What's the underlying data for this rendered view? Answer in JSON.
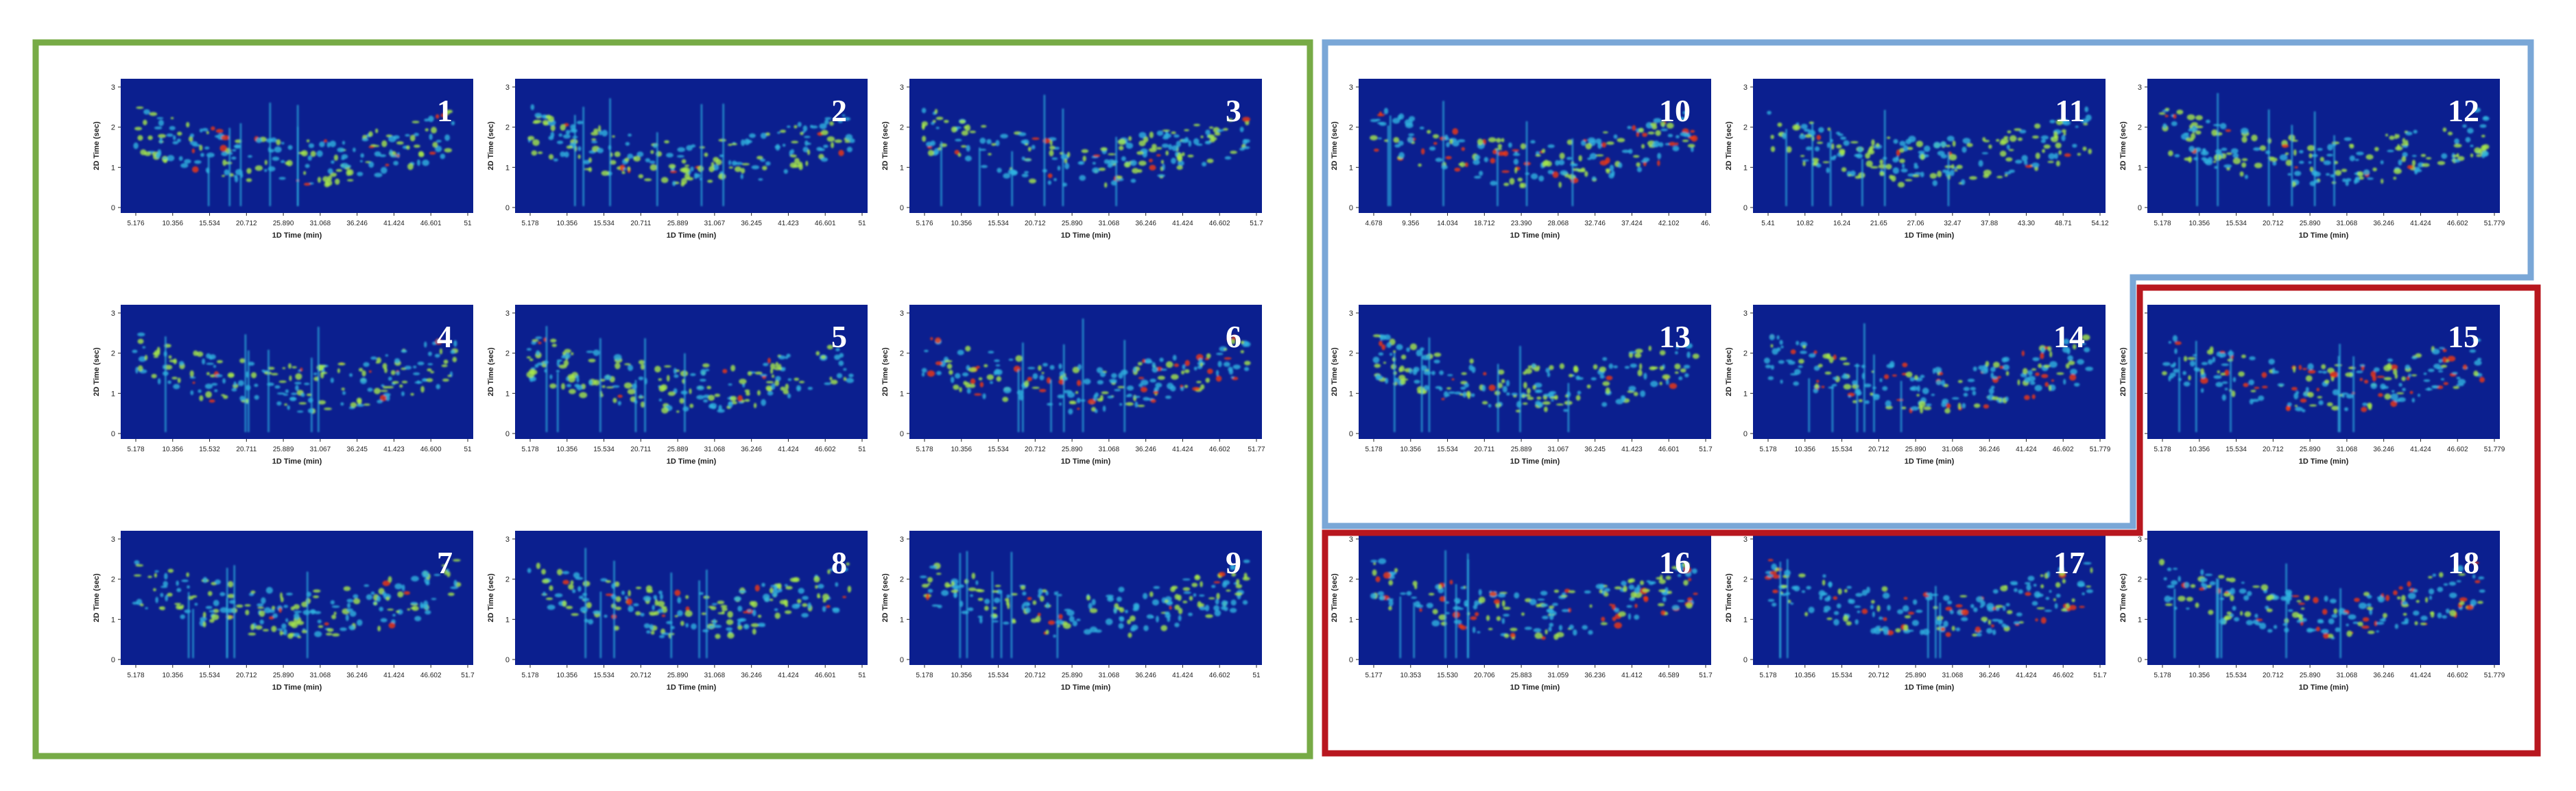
{
  "colors": {
    "group_green": "#77ab46",
    "group_blue": "#7aa7d7",
    "group_red": "#b8171f",
    "plot_background": "#0b1f8f",
    "peak_low": "#2fb3e0",
    "peak_mid": "#a8e84a",
    "peak_high": "#f23a12"
  },
  "groups": [
    {
      "name": "green",
      "panels": [
        "1",
        "2",
        "3",
        "4",
        "5",
        "6",
        "7",
        "8",
        "9"
      ]
    },
    {
      "name": "blue",
      "panels": [
        "10",
        "11",
        "12",
        "13",
        "14"
      ]
    },
    {
      "name": "red",
      "panels": [
        "15",
        "16",
        "17",
        "18"
      ]
    }
  ],
  "panels": [
    {
      "label": "1",
      "y_title": "2D Time (sec)",
      "x_title": "1D Time (min)",
      "y_ticks": [
        "0",
        "1",
        "2",
        "3"
      ],
      "x_ticks": [
        "5.176",
        "10.356",
        "15.534",
        "20.712",
        "25.890",
        "31.068",
        "36.246",
        "41.424",
        "46.601",
        "51"
      ]
    },
    {
      "label": "2",
      "y_title": "2D Time (sec)",
      "x_title": "1D Time (min)",
      "y_ticks": [
        "0",
        "1",
        "2",
        "3"
      ],
      "x_ticks": [
        "5.178",
        "10.356",
        "15.534",
        "20.711",
        "25.889",
        "31.067",
        "36.245",
        "41.423",
        "46.601",
        "51"
      ]
    },
    {
      "label": "3",
      "y_title": "2D Time (sec)",
      "x_title": "1D Time (min)",
      "y_ticks": [
        "0",
        "1",
        "2",
        "3"
      ],
      "x_ticks": [
        "5.176",
        "10.356",
        "15.534",
        "20.712",
        "25.890",
        "31.068",
        "36.246",
        "41.424",
        "46.602",
        "51.7"
      ]
    },
    {
      "label": "4",
      "y_title": "2D Time (sec)",
      "x_title": "1D Time (min)",
      "y_ticks": [
        "0",
        "1",
        "2",
        "3"
      ],
      "x_ticks": [
        "5.178",
        "10.356",
        "15.532",
        "20.711",
        "25.889",
        "31.067",
        "36.245",
        "41.423",
        "46.600",
        "51"
      ]
    },
    {
      "label": "5",
      "y_title": "2D Time (sec)",
      "x_title": "1D Time (min)",
      "y_ticks": [
        "0",
        "1",
        "2",
        "3"
      ],
      "x_ticks": [
        "5.178",
        "10.356",
        "15.534",
        "20.711",
        "25.889",
        "31.068",
        "36.246",
        "41.424",
        "46.602",
        "51"
      ]
    },
    {
      "label": "6",
      "y_title": "2D Time (sec)",
      "x_title": "1D Time (min)",
      "y_ticks": [
        "0",
        "1",
        "2",
        "3"
      ],
      "x_ticks": [
        "5.178",
        "10.356",
        "15.534",
        "20.712",
        "25.890",
        "31.068",
        "36.246",
        "41.424",
        "46.602",
        "51.77"
      ]
    },
    {
      "label": "7",
      "y_title": "2D Time (sec)",
      "x_title": "1D Time (min)",
      "y_ticks": [
        "0",
        "1",
        "2",
        "3"
      ],
      "x_ticks": [
        "5.178",
        "10.356",
        "15.534",
        "20.712",
        "25.890",
        "31.068",
        "36.246",
        "41.424",
        "46.602",
        "51.7"
      ]
    },
    {
      "label": "8",
      "y_title": "2D Time (sec)",
      "x_title": "1D Time (min)",
      "y_ticks": [
        "0",
        "1",
        "2",
        "3"
      ],
      "x_ticks": [
        "5.178",
        "10.356",
        "15.534",
        "20.712",
        "25.890",
        "31.068",
        "36.246",
        "41.424",
        "46.601",
        "51"
      ]
    },
    {
      "label": "9",
      "y_title": "2D Time (sec)",
      "x_title": "1D Time (min)",
      "y_ticks": [
        "0",
        "1",
        "2",
        "3"
      ],
      "x_ticks": [
        "5.178",
        "10.356",
        "15.534",
        "20.712",
        "25.890",
        "31.068",
        "36.246",
        "41.424",
        "46.602",
        "51"
      ]
    },
    {
      "label": "10",
      "y_title": "2D Time (sec)",
      "x_title": "1D Time (min)",
      "y_ticks": [
        "0",
        "1",
        "2",
        "3"
      ],
      "x_ticks": [
        "4.678",
        "9.356",
        "14.034",
        "18.712",
        "23.390",
        "28.068",
        "32.746",
        "37.424",
        "42.102",
        "46."
      ]
    },
    {
      "label": "11",
      "y_title": "2D Time (sec)",
      "x_title": "1D Time (min)",
      "y_ticks": [
        "0",
        "1",
        "2",
        "3"
      ],
      "x_ticks": [
        "5.41",
        "10.82",
        "16.24",
        "21.65",
        "27.06",
        "32.47",
        "37.88",
        "43.30",
        "48.71",
        "54.12"
      ]
    },
    {
      "label": "12",
      "y_title": "2D Time (sec)",
      "x_title": "1D Time (min)",
      "y_ticks": [
        "0",
        "1",
        "2",
        "3"
      ],
      "x_ticks": [
        "5.178",
        "10.356",
        "15.534",
        "20.712",
        "25.890",
        "31.068",
        "36.246",
        "41.424",
        "46.602",
        "51.779"
      ]
    },
    {
      "label": "13",
      "y_title": "2D Time (sec)",
      "x_title": "1D Time (min)",
      "y_ticks": [
        "0",
        "1",
        "2",
        "3"
      ],
      "x_ticks": [
        "5.178",
        "10.356",
        "15.534",
        "20.711",
        "25.889",
        "31.067",
        "36.245",
        "41.423",
        "46.601",
        "51.7"
      ]
    },
    {
      "label": "14",
      "y_title": "2D Time (sec)",
      "x_title": "1D Time (min)",
      "y_ticks": [
        "0",
        "1",
        "2",
        "3"
      ],
      "x_ticks": [
        "5.178",
        "10.356",
        "15.534",
        "20.712",
        "25.890",
        "31.068",
        "36.246",
        "41.424",
        "46.602",
        "51.779"
      ]
    },
    {
      "label": "15",
      "y_title": "2D Time (sec)",
      "x_title": "1D Time (min)",
      "y_ticks": [
        "0",
        "1",
        "2",
        "3"
      ],
      "x_ticks": [
        "5.178",
        "10.356",
        "15.534",
        "20.712",
        "25.890",
        "31.068",
        "36.246",
        "41.424",
        "46.602",
        "51.779"
      ]
    },
    {
      "label": "16",
      "y_title": "2D Time (sec)",
      "x_title": "1D Time (min)",
      "y_ticks": [
        "0",
        "1",
        "2",
        "3"
      ],
      "x_ticks": [
        "5.177",
        "10.353",
        "15.530",
        "20.706",
        "25.883",
        "31.059",
        "36.236",
        "41.412",
        "46.589",
        "51.7"
      ]
    },
    {
      "label": "17",
      "y_title": "2D Time (sec)",
      "x_title": "1D Time (min)",
      "y_ticks": [
        "0",
        "1",
        "2",
        "3"
      ],
      "x_ticks": [
        "5.178",
        "10.356",
        "15.534",
        "20.712",
        "25.890",
        "31.068",
        "36.246",
        "41.424",
        "46.602",
        "51.7"
      ]
    },
    {
      "label": "18",
      "y_title": "2D Time (sec)",
      "x_title": "1D Time (min)",
      "y_ticks": [
        "0",
        "1",
        "2",
        "3"
      ],
      "x_ticks": [
        "5.178",
        "10.356",
        "15.534",
        "20.712",
        "25.890",
        "31.068",
        "36.246",
        "41.424",
        "46.602",
        "51.779"
      ]
    }
  ]
}
